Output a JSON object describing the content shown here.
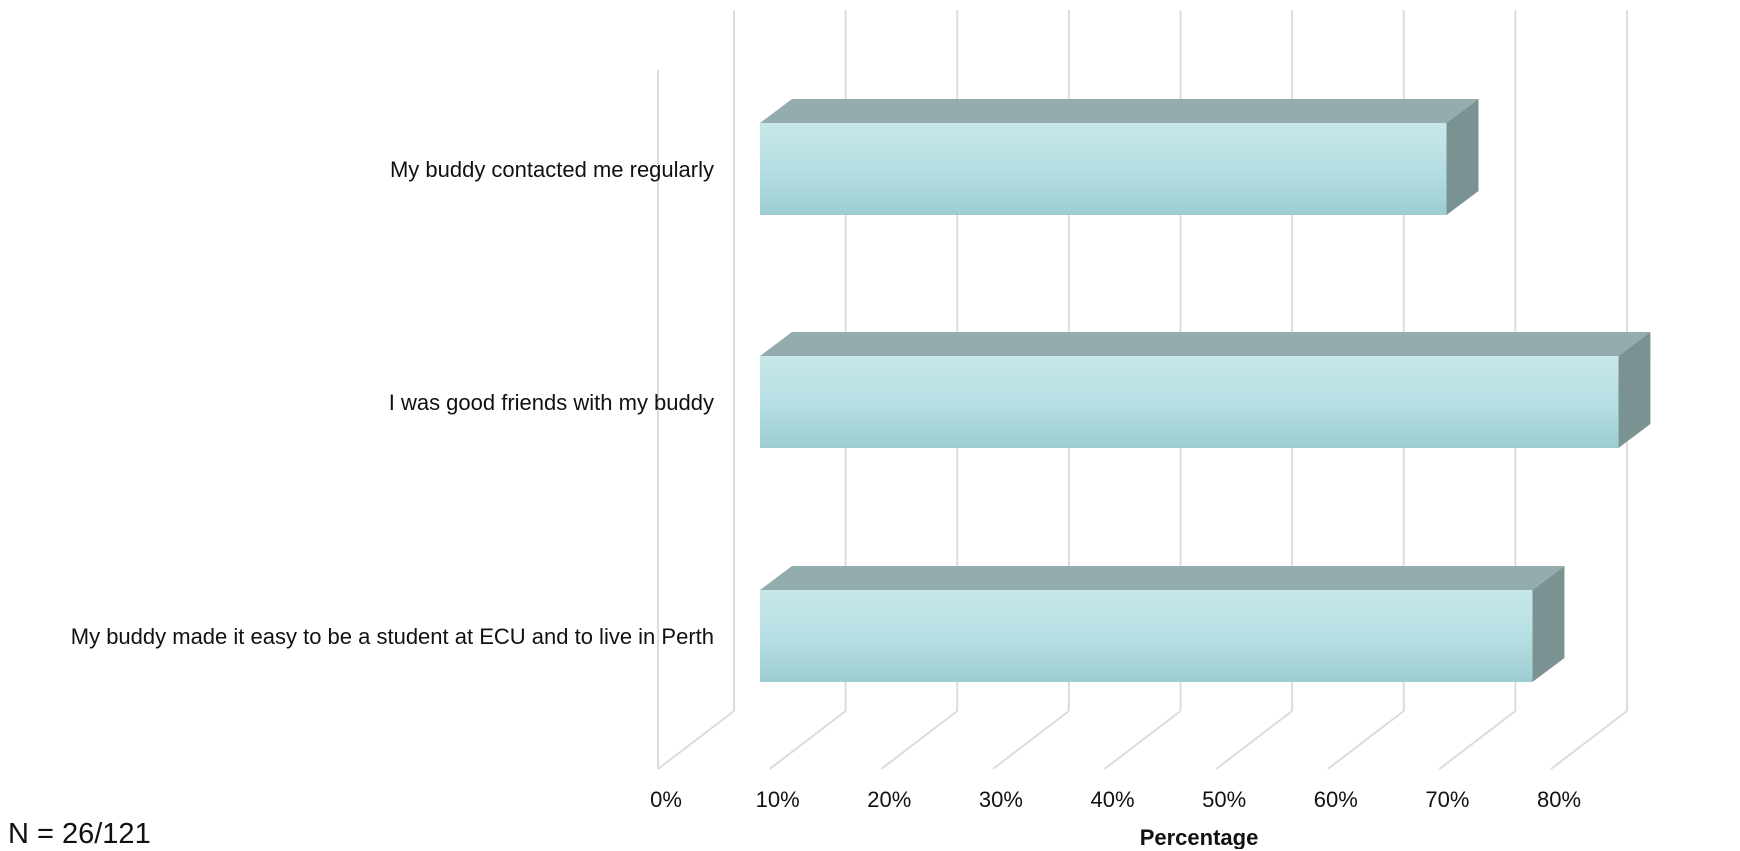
{
  "chart_data": {
    "type": "bar",
    "orientation": "horizontal",
    "style": "3d",
    "categories": [
      "My buddy contacted me regularly",
      "I was good friends with my buddy",
      "My buddy made it easy to be a student at ECU and to live in Perth"
    ],
    "values": [
      61.5,
      76.9,
      69.2
    ],
    "xlabel": "Percentage",
    "ylabel": "",
    "xlim": [
      0,
      80
    ],
    "ticks": [
      "0%",
      "10%",
      "20%",
      "30%",
      "40%",
      "50%",
      "60%",
      "70%",
      "80%"
    ],
    "grid": true,
    "colors": {
      "bar_front": "#b4dde1",
      "bar_top": "#93acae",
      "bar_side": "#7b9293",
      "grid": "#dcdcdc"
    }
  },
  "note": "N = 26/121"
}
